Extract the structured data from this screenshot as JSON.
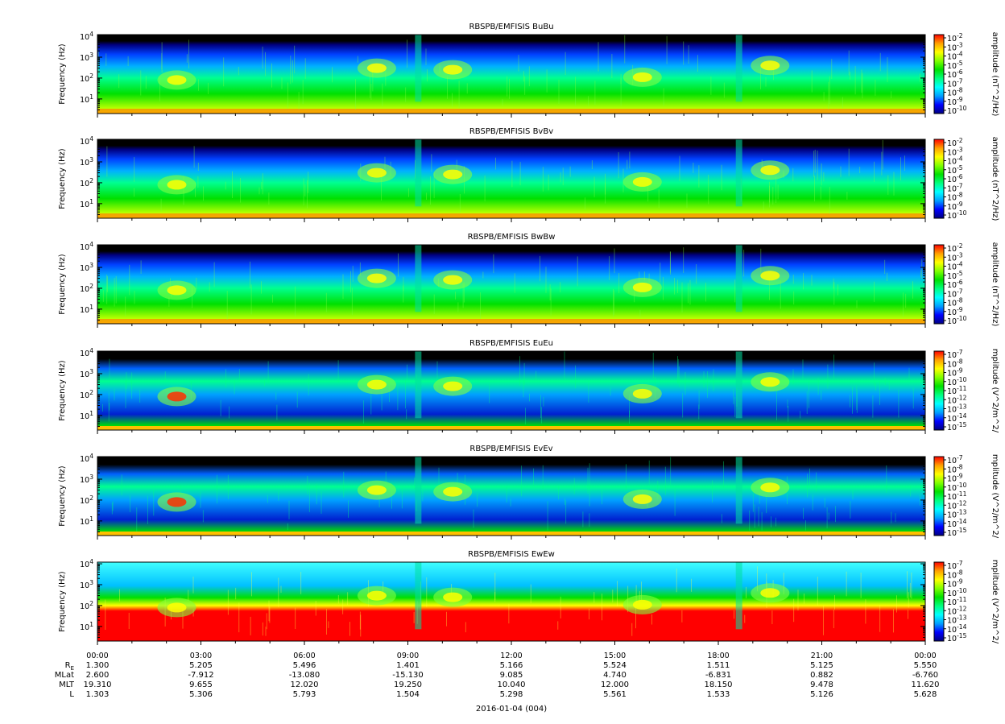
{
  "chart_data": {
    "type": "heatmap",
    "date": "2016-01-04 (004)",
    "xaxis": {
      "range_hours": [
        0,
        24
      ],
      "tick_labels": [
        "00:00",
        "03:00",
        "06:00",
        "09:00",
        "12:00",
        "15:00",
        "18:00",
        "21:00",
        "00:00"
      ],
      "tick_hours": [
        0,
        3,
        6,
        9,
        12,
        15,
        18,
        21,
        24
      ]
    },
    "ephemeris": [
      {
        "label": "R",
        "sub": "E",
        "values": [
          "1.300",
          "5.205",
          "5.496",
          "1.401",
          "5.166",
          "5.524",
          "1.511",
          "5.125",
          "5.550"
        ]
      },
      {
        "label": "MLat",
        "sub": "",
        "values": [
          "2.600",
          "-7.912",
          "-13.080",
          "-15.130",
          "9.085",
          "4.740",
          "-6.831",
          "0.882",
          "-6.760"
        ]
      },
      {
        "label": "MLT",
        "sub": "",
        "values": [
          "19.310",
          "9.655",
          "12.020",
          "19.250",
          "10.040",
          "12.000",
          "18.150",
          "9.478",
          "11.620"
        ]
      },
      {
        "label": "L",
        "sub": "",
        "values": [
          "1.303",
          "5.306",
          "5.793",
          "1.504",
          "5.298",
          "5.561",
          "1.533",
          "5.126",
          "5.628"
        ]
      }
    ],
    "panels": [
      {
        "title": "RBSPB/EMFISIS  BuBu",
        "ylabel": "Frequency (Hz)",
        "yscale": "log",
        "ylim_hz": [
          2,
          12000
        ],
        "y_ticks": [
          {
            "base": "10",
            "exp": "4"
          },
          {
            "base": "10",
            "exp": "3"
          },
          {
            "base": "10",
            "exp": "2"
          },
          {
            "base": "10",
            "exp": "1"
          }
        ],
        "zlabel": "amplitude (nT^2/Hz)",
        "zscale": "log",
        "z_ticks": [
          {
            "base": "10",
            "exp": "-2"
          },
          {
            "base": "10",
            "exp": "-3"
          },
          {
            "base": "10",
            "exp": "-4"
          },
          {
            "base": "10",
            "exp": "-5"
          },
          {
            "base": "10",
            "exp": "-6"
          },
          {
            "base": "10",
            "exp": "-7"
          },
          {
            "base": "10",
            "exp": "-8"
          },
          {
            "base": "10",
            "exp": "-9"
          },
          {
            "base": "10",
            "exp": "-10"
          }
        ]
      },
      {
        "title": "RBSPB/EMFISIS  BvBv",
        "ylabel": "Frequency (Hz)",
        "yscale": "log",
        "ylim_hz": [
          2,
          12000
        ],
        "y_ticks": [
          {
            "base": "10",
            "exp": "4"
          },
          {
            "base": "10",
            "exp": "3"
          },
          {
            "base": "10",
            "exp": "2"
          },
          {
            "base": "10",
            "exp": "1"
          }
        ],
        "zlabel": "amplitude (nT^2/Hz)",
        "zscale": "log",
        "z_ticks": [
          {
            "base": "10",
            "exp": "-2"
          },
          {
            "base": "10",
            "exp": "-3"
          },
          {
            "base": "10",
            "exp": "-4"
          },
          {
            "base": "10",
            "exp": "-5"
          },
          {
            "base": "10",
            "exp": "-6"
          },
          {
            "base": "10",
            "exp": "-7"
          },
          {
            "base": "10",
            "exp": "-8"
          },
          {
            "base": "10",
            "exp": "-9"
          },
          {
            "base": "10",
            "exp": "-10"
          }
        ]
      },
      {
        "title": "RBSPB/EMFISIS  BwBw",
        "ylabel": "Frequency (Hz)",
        "yscale": "log",
        "ylim_hz": [
          2,
          12000
        ],
        "y_ticks": [
          {
            "base": "10",
            "exp": "4"
          },
          {
            "base": "10",
            "exp": "3"
          },
          {
            "base": "10",
            "exp": "2"
          },
          {
            "base": "10",
            "exp": "1"
          }
        ],
        "zlabel": "amplitude (nT^2/Hz)",
        "zscale": "log",
        "z_ticks": [
          {
            "base": "10",
            "exp": "-2"
          },
          {
            "base": "10",
            "exp": "-3"
          },
          {
            "base": "10",
            "exp": "-4"
          },
          {
            "base": "10",
            "exp": "-5"
          },
          {
            "base": "10",
            "exp": "-6"
          },
          {
            "base": "10",
            "exp": "-7"
          },
          {
            "base": "10",
            "exp": "-8"
          },
          {
            "base": "10",
            "exp": "-9"
          },
          {
            "base": "10",
            "exp": "-10"
          }
        ]
      },
      {
        "title": "RBSPB/EMFISIS  EuEu",
        "ylabel": "Frequency (Hz)",
        "yscale": "log",
        "ylim_hz": [
          2,
          12000
        ],
        "y_ticks": [
          {
            "base": "10",
            "exp": "4"
          },
          {
            "base": "10",
            "exp": "3"
          },
          {
            "base": "10",
            "exp": "2"
          },
          {
            "base": "10",
            "exp": "1"
          }
        ],
        "zlabel": "mplitude (V^2/m^2/",
        "zscale": "log",
        "z_ticks": [
          {
            "base": "10",
            "exp": "-7"
          },
          {
            "base": "10",
            "exp": "-8"
          },
          {
            "base": "10",
            "exp": "-9"
          },
          {
            "base": "10",
            "exp": "-10"
          },
          {
            "base": "10",
            "exp": "-11"
          },
          {
            "base": "10",
            "exp": "-12"
          },
          {
            "base": "10",
            "exp": "-13"
          },
          {
            "base": "10",
            "exp": "-14"
          },
          {
            "base": "10",
            "exp": "-15"
          }
        ]
      },
      {
        "title": "RBSPB/EMFISIS  EvEv",
        "ylabel": "Frequency (Hz)",
        "yscale": "log",
        "ylim_hz": [
          2,
          12000
        ],
        "y_ticks": [
          {
            "base": "10",
            "exp": "4"
          },
          {
            "base": "10",
            "exp": "3"
          },
          {
            "base": "10",
            "exp": "2"
          },
          {
            "base": "10",
            "exp": "1"
          }
        ],
        "zlabel": "mplitude (V^2/m^2/",
        "zscale": "log",
        "z_ticks": [
          {
            "base": "10",
            "exp": "-7"
          },
          {
            "base": "10",
            "exp": "-8"
          },
          {
            "base": "10",
            "exp": "-9"
          },
          {
            "base": "10",
            "exp": "-10"
          },
          {
            "base": "10",
            "exp": "-11"
          },
          {
            "base": "10",
            "exp": "-12"
          },
          {
            "base": "10",
            "exp": "-13"
          },
          {
            "base": "10",
            "exp": "-14"
          },
          {
            "base": "10",
            "exp": "-15"
          }
        ]
      },
      {
        "title": "RBSPB/EMFISIS  EwEw",
        "ylabel": "Frequency (Hz)",
        "yscale": "log",
        "ylim_hz": [
          2,
          12000
        ],
        "y_ticks": [
          {
            "base": "10",
            "exp": "4"
          },
          {
            "base": "10",
            "exp": "3"
          },
          {
            "base": "10",
            "exp": "2"
          },
          {
            "base": "10",
            "exp": "1"
          }
        ],
        "zlabel": "mplitude (V^2/m^2/",
        "zscale": "log",
        "z_ticks": [
          {
            "base": "10",
            "exp": "-7"
          },
          {
            "base": "10",
            "exp": "-8"
          },
          {
            "base": "10",
            "exp": "-9"
          },
          {
            "base": "10",
            "exp": "-10"
          },
          {
            "base": "10",
            "exp": "-11"
          },
          {
            "base": "10",
            "exp": "-12"
          },
          {
            "base": "10",
            "exp": "-13"
          },
          {
            "base": "10",
            "exp": "-14"
          },
          {
            "base": "10",
            "exp": "-15"
          }
        ]
      }
    ],
    "colormap": [
      "#000080",
      "#0000ff",
      "#00a0ff",
      "#00ffff",
      "#00ff80",
      "#00e000",
      "#80ff00",
      "#ffff00",
      "#ffa000",
      "#ff0000"
    ]
  }
}
